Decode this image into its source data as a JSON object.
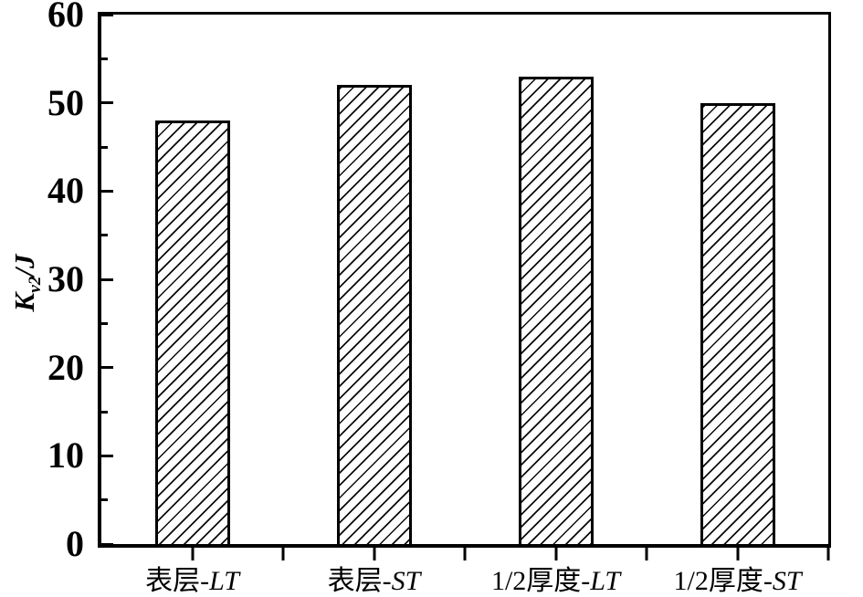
{
  "chart_data": {
    "type": "bar",
    "title": "",
    "categories": [
      "表层-LT",
      "表层-ST",
      "1/2厚度-LT",
      "1/2厚度-ST"
    ],
    "category_parts": [
      {
        "main": "表层-",
        "italic": "LT"
      },
      {
        "main": "表层-",
        "italic": "ST"
      },
      {
        "main": "1/2厚度-",
        "italic": "LT"
      },
      {
        "main": "1/2厚度-",
        "italic": "ST"
      }
    ],
    "values": [
      48,
      52,
      53,
      50
    ],
    "xlabel": "",
    "ylabel": "Kv2/J",
    "ylabel_parts": {
      "symbol": "K",
      "subscript": "v2",
      "unit": "/J"
    },
    "ylim": [
      0,
      60
    ],
    "yticks": [
      0,
      10,
      20,
      30,
      40,
      50,
      60
    ],
    "ytick_labels": [
      "0",
      "10",
      "20",
      "30",
      "40",
      "50",
      "60"
    ],
    "yticks_minor": [
      5,
      15,
      25,
      35,
      45,
      55
    ],
    "grid": false,
    "legend": "none",
    "frame": "full-box",
    "x_tick_style": "ticks below axis at category centers and boundaries",
    "bar_style": {
      "fill": "#ffffff",
      "hatch": "forward-diagonal",
      "edge_color": "#000000"
    },
    "colors": {
      "axis": "#000000",
      "background": "#ffffff",
      "text": "#000000"
    }
  }
}
